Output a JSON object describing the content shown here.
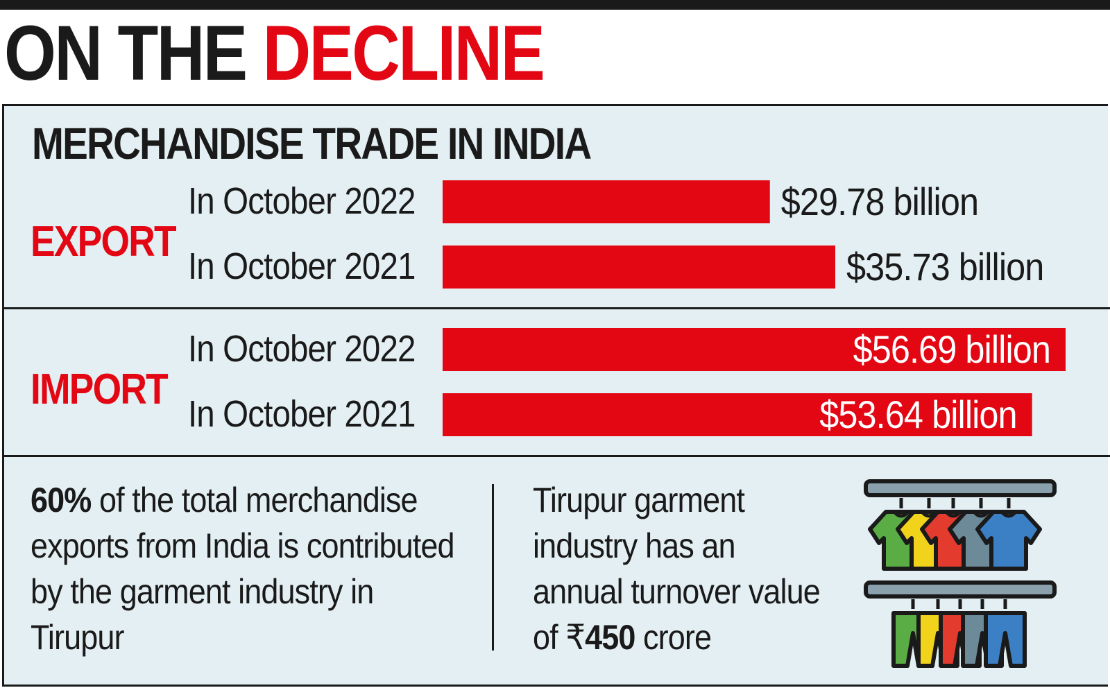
{
  "headline": {
    "part1": "ON THE",
    "part2": "DECLINE"
  },
  "chart_data": {
    "type": "bar",
    "orientation": "horizontal",
    "title": "MERCHANDISE TRADE IN INDIA",
    "unit": "$ billion",
    "groups": [
      {
        "name": "EXPORT",
        "bars": [
          {
            "label": "In October 2022",
            "value": 29.78,
            "value_label": "$29.78 billion"
          },
          {
            "label": "In October 2021",
            "value": 35.73,
            "value_label": "$35.73 billion"
          }
        ]
      },
      {
        "name": "IMPORT",
        "bars": [
          {
            "label": "In October 2022",
            "value": 56.69,
            "value_label": "$56.69 billion"
          },
          {
            "label": "In October 2021",
            "value": 53.64,
            "value_label": "$53.64 billion"
          }
        ]
      }
    ],
    "bar_color": "#e30613",
    "group_label_color": "#e30613"
  },
  "notes": {
    "left": {
      "strong": "60%",
      "text": " of the total merchandise exports from India is contributed by the garment industry in Tirupur"
    },
    "right": {
      "text": "Tirupur garment industry has an annual turnover value of ₹",
      "strong": "450",
      "suffix": " crore"
    }
  },
  "icon": {
    "name": "clothes-rack-icon",
    "colors": [
      "#3b7fc4",
      "#6d8a99",
      "#e33b2e",
      "#f2d31b",
      "#5aac44"
    ]
  }
}
